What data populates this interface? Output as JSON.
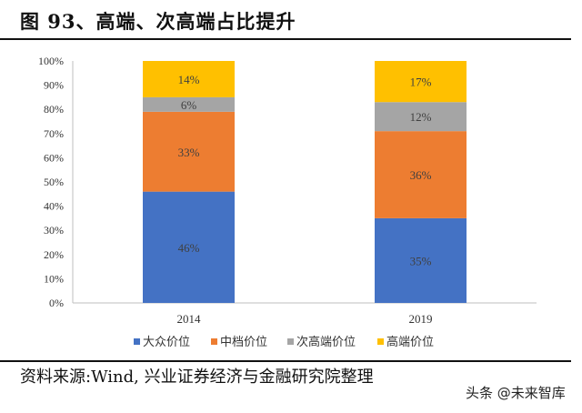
{
  "title": "图 93、高端、次高端占比提升",
  "source": "资料来源:Wind, 兴业证券经济与金融研究院整理",
  "watermark": "头条 @未来智库",
  "chart_data": {
    "type": "bar",
    "stacked": true,
    "title": "",
    "xlabel": "",
    "ylabel": "",
    "categories": [
      "2014",
      "2019"
    ],
    "ylim": [
      0,
      100
    ],
    "y_ticks": [
      "0%",
      "10%",
      "20%",
      "30%",
      "40%",
      "50%",
      "60%",
      "70%",
      "80%",
      "90%",
      "100%"
    ],
    "grid": false,
    "legend_position": "bottom",
    "series": [
      {
        "name": "大众价位",
        "values": [
          46,
          35
        ],
        "labels": [
          "46%",
          "35%"
        ],
        "color": "#4472C4"
      },
      {
        "name": "中档价位",
        "values": [
          33,
          36
        ],
        "labels": [
          "33%",
          "36%"
        ],
        "color": "#ED7D31"
      },
      {
        "name": "次高端价位",
        "values": [
          6,
          12
        ],
        "labels": [
          "6%",
          "12%"
        ],
        "color": "#A5A5A5"
      },
      {
        "name": "高端价位",
        "values": [
          14,
          17
        ],
        "labels": [
          "14%",
          "17%"
        ],
        "color": "#FFC000"
      }
    ]
  }
}
